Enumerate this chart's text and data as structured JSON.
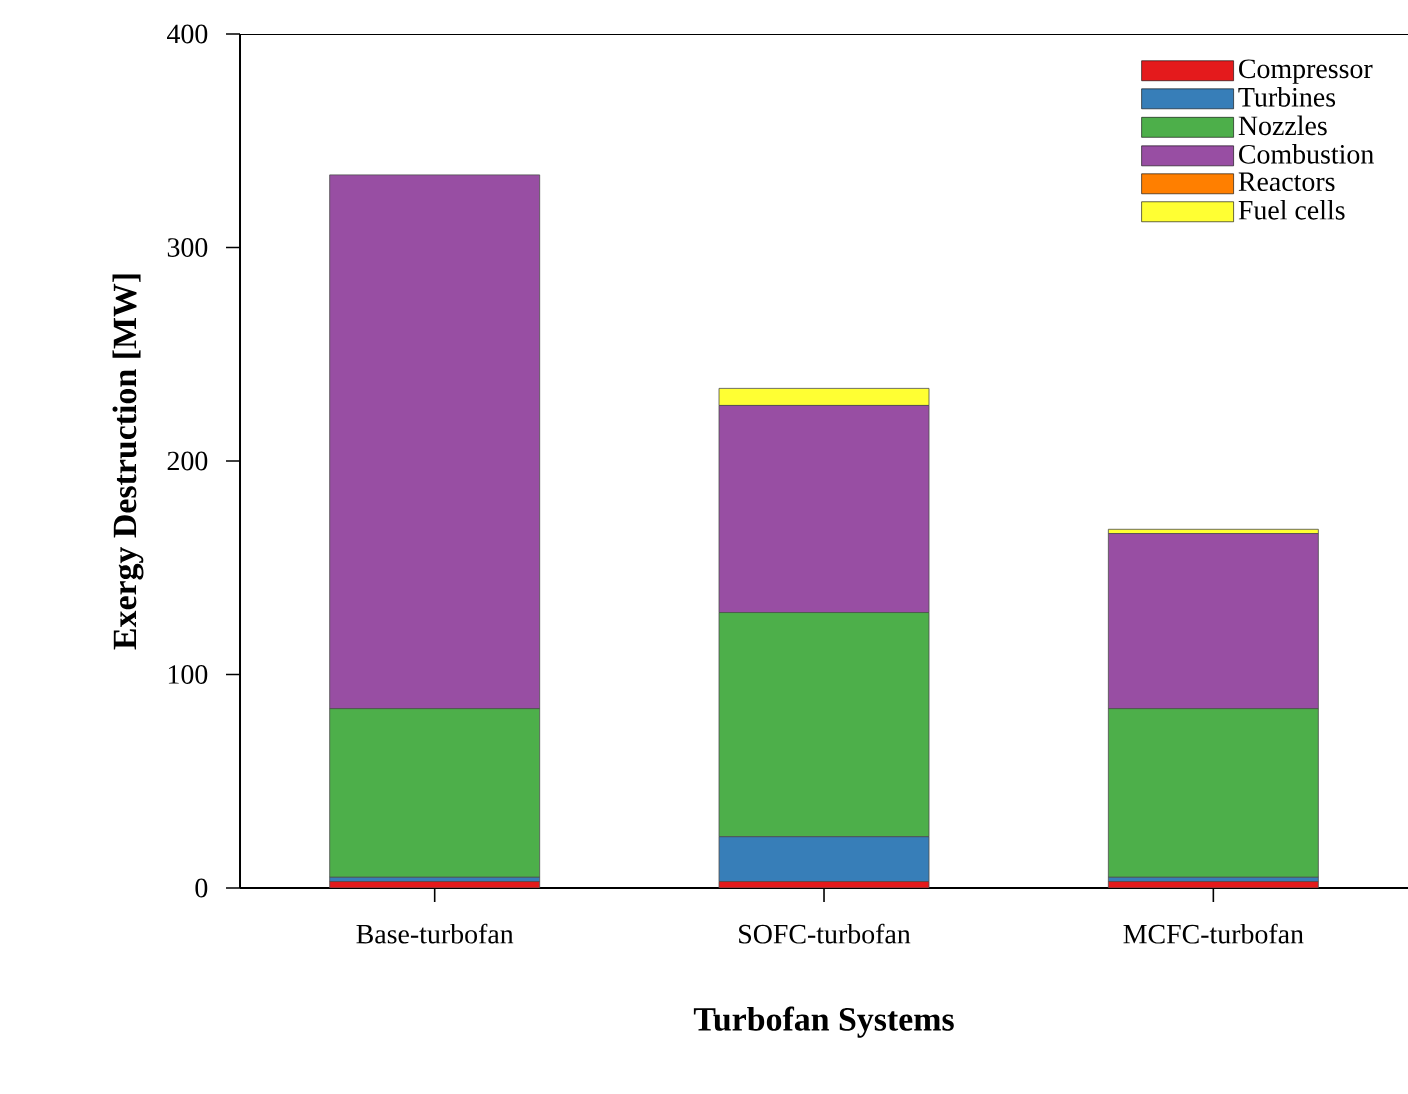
{
  "chart_data": {
    "type": "bar",
    "stacked": true,
    "xlabel": "Turbofan Systems",
    "ylabel": "Exergy Destruction [MW]",
    "categories": [
      "Base-turbofan",
      "SOFC-turbofan",
      "MCFC-turbofan"
    ],
    "series": [
      {
        "name": "Compressor",
        "color": "#e41a1c",
        "values": [
          3,
          3,
          3
        ]
      },
      {
        "name": "Turbines",
        "color": "#377eb8",
        "values": [
          2,
          21,
          2
        ]
      },
      {
        "name": "Nozzles",
        "color": "#4daf4a",
        "values": [
          79,
          105,
          79
        ]
      },
      {
        "name": "Combustion",
        "color": "#984ea3",
        "values": [
          250,
          97,
          82
        ]
      },
      {
        "name": "Reactors",
        "color": "#ff7f00",
        "values": [
          0,
          0,
          0
        ]
      },
      {
        "name": "Fuel cells",
        "color": "#ffff33",
        "values": [
          0,
          8,
          2
        ]
      }
    ],
    "ylim": [
      0,
      400
    ],
    "yticks": [
      0,
      100,
      200,
      300,
      400
    ],
    "legend": "top right",
    "grid": false
  }
}
